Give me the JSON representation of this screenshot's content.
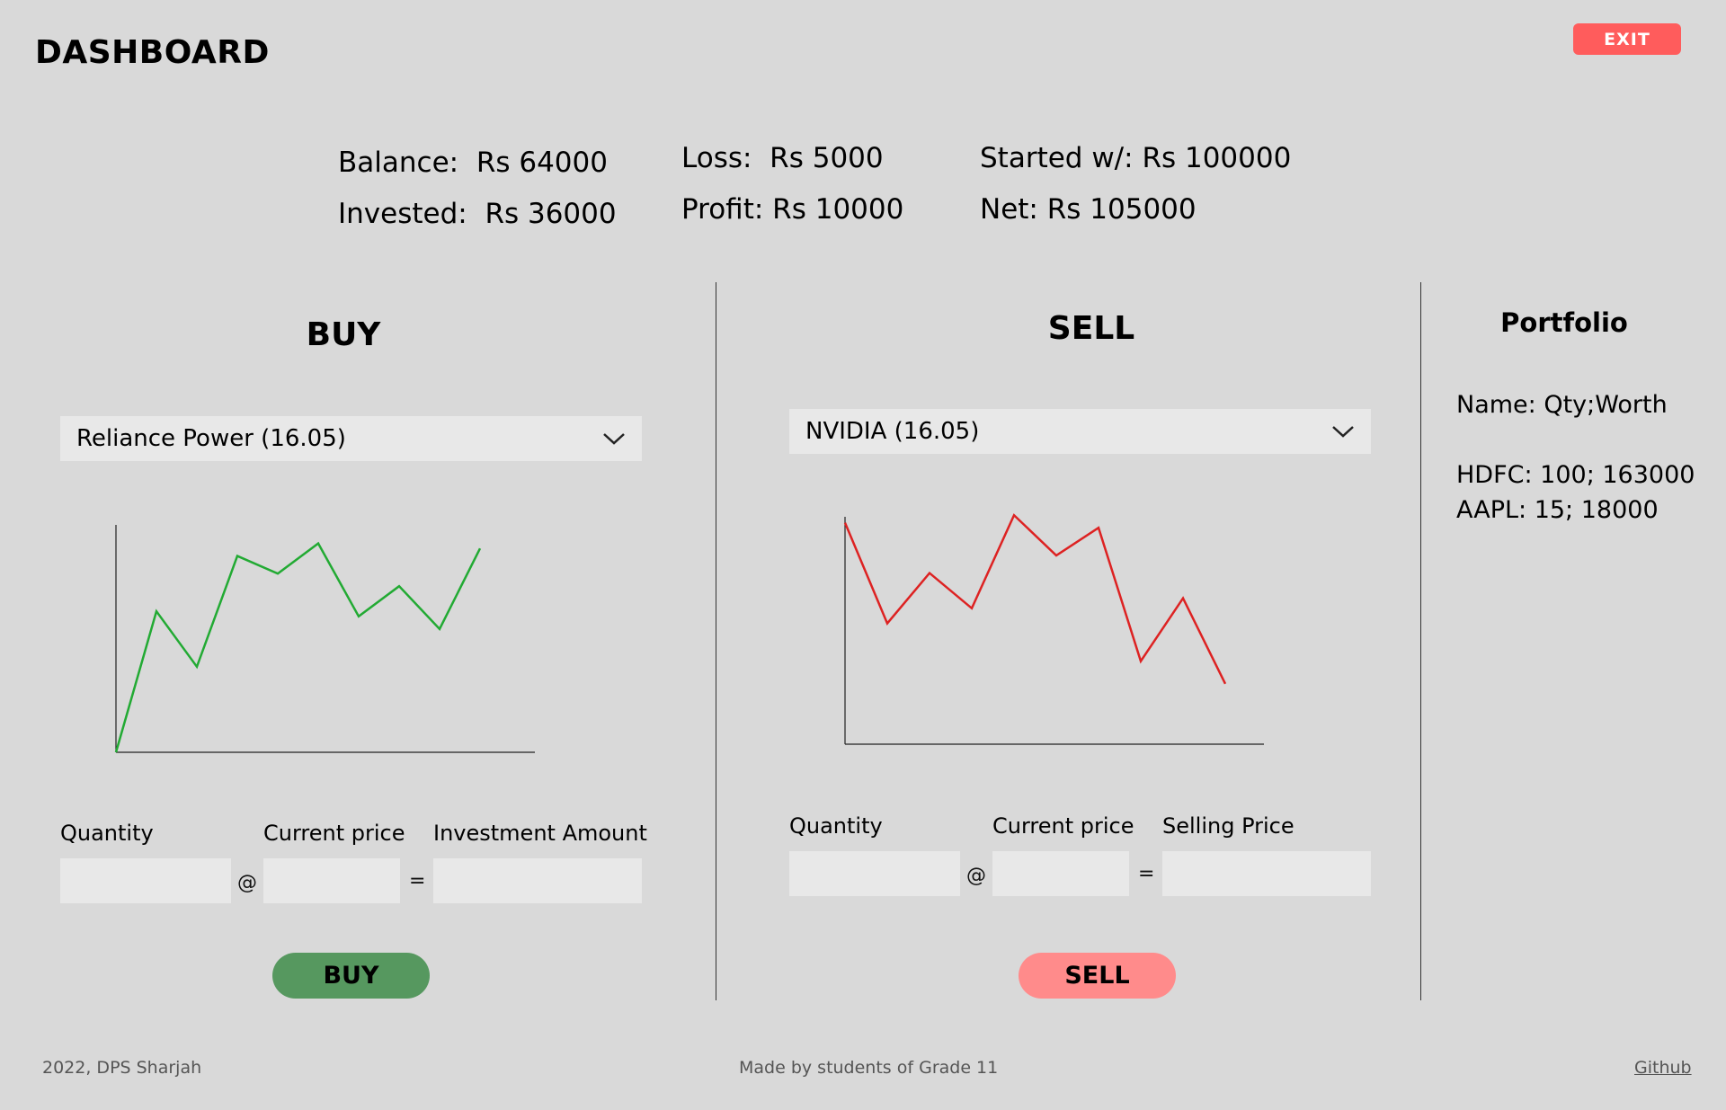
{
  "header": {
    "title": "DASHBOARD",
    "exit_label": "EXIT"
  },
  "stats": {
    "balance_label": "Balance:",
    "balance_value": "Rs 64000",
    "invested_label": "Invested:",
    "invested_value": "Rs 36000",
    "loss_label": "Loss:",
    "loss_value": "Rs 5000",
    "profit_label": "Profit:",
    "profit_value": "Rs 10000",
    "started_label": "Started w/:",
    "started_value": "Rs 100000",
    "net_label": "Net:",
    "net_value": "Rs 105000"
  },
  "buy": {
    "heading": "BUY",
    "selected_stock": "Reliance Power (16.05)",
    "quantity_label": "Quantity",
    "price_label": "Current price",
    "amount_label": "Investment Amount",
    "at_symbol": "@",
    "equals_symbol": "=",
    "button_label": "BUY",
    "button_color": "#56985f",
    "line_color": "#22aa33",
    "chart_values": [
      0,
      56,
      34,
      78,
      71,
      83,
      54,
      66,
      49,
      81
    ]
  },
  "sell": {
    "heading": "SELL",
    "selected_stock": "NVIDIA (16.05)",
    "quantity_label": "Quantity",
    "price_label": "Current price",
    "amount_label": "Selling Price",
    "at_symbol": "@",
    "equals_symbol": "=",
    "button_label": "SELL",
    "button_color": "#ff8b8b",
    "line_color": "#dd2222",
    "chart_values": [
      88,
      48,
      68,
      54,
      91,
      75,
      86,
      33,
      58,
      24
    ]
  },
  "portfolio": {
    "heading": "Portfolio",
    "column_header": "Name: Qty;Worth",
    "items": [
      "HDFC: 100; 163000",
      "AAPL: 15; 18000"
    ]
  },
  "footer": {
    "left": "2022, DPS Sharjah",
    "center": "Made by students of Grade 11",
    "link": "Github"
  }
}
